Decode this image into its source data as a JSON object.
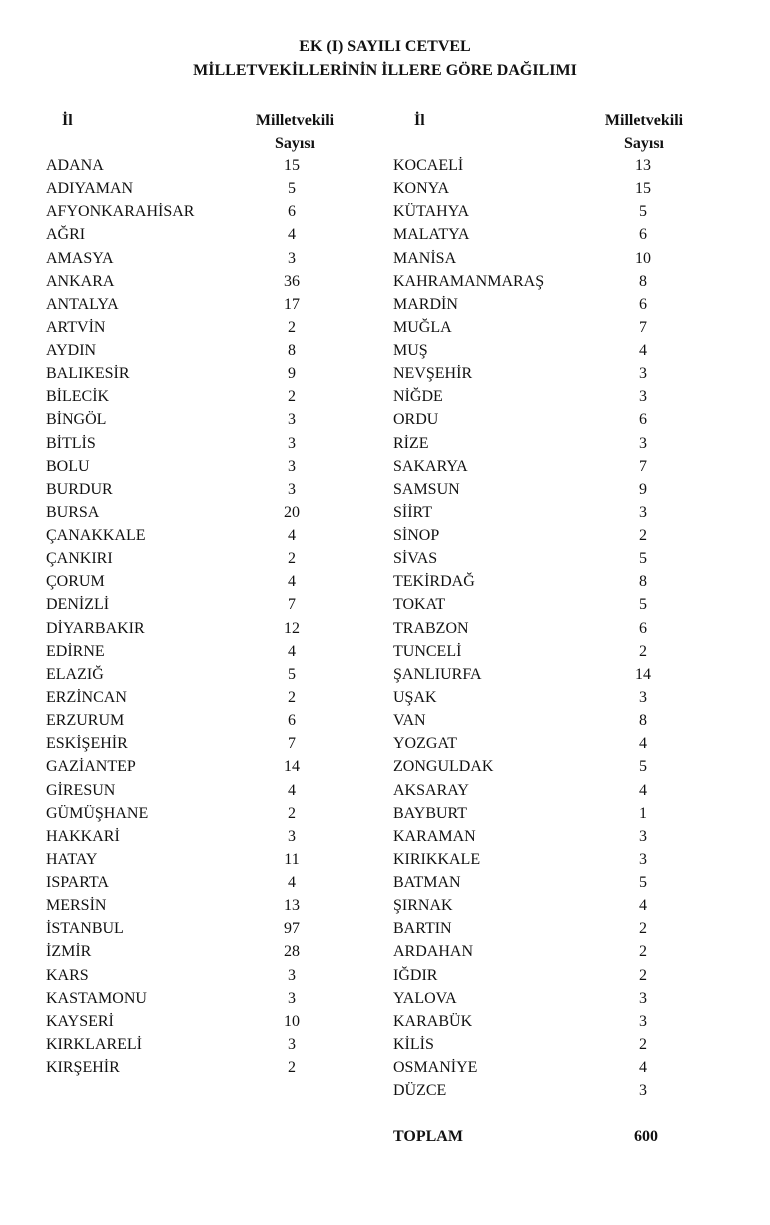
{
  "title_line1": "EK (I) SAYILI CETVEL",
  "title_line2": "MİLLETVEKİLLERİNİN İLLERE GÖRE DAĞILIMI",
  "header": {
    "il": "İl",
    "count_line1": "Milletvekili",
    "count_line2": "Sayısı"
  },
  "left_column": [
    {
      "il": "ADANA",
      "count": "15"
    },
    {
      "il": "ADIYAMAN",
      "count": "5"
    },
    {
      "il": "AFYONKARAHİSAR",
      "count": "6"
    },
    {
      "il": "AĞRI",
      "count": "4"
    },
    {
      "il": "AMASYA",
      "count": "3"
    },
    {
      "il": "ANKARA",
      "count": "36"
    },
    {
      "il": "ANTALYA",
      "count": "17"
    },
    {
      "il": "ARTVİN",
      "count": "2"
    },
    {
      "il": "AYDIN",
      "count": "8"
    },
    {
      "il": "BALIKESİR",
      "count": "9"
    },
    {
      "il": "BİLECİK",
      "count": "2"
    },
    {
      "il": "BİNGÖL",
      "count": "3"
    },
    {
      "il": "BİTLİS",
      "count": "3"
    },
    {
      "il": "BOLU",
      "count": "3"
    },
    {
      "il": "BURDUR",
      "count": "3"
    },
    {
      "il": "BURSA",
      "count": "20"
    },
    {
      "il": "ÇANAKKALE",
      "count": "4"
    },
    {
      "il": "ÇANKIRI",
      "count": "2"
    },
    {
      "il": "ÇORUM",
      "count": "4"
    },
    {
      "il": "DENİZLİ",
      "count": "7"
    },
    {
      "il": "DİYARBAKIR",
      "count": "12"
    },
    {
      "il": "EDİRNE",
      "count": "4"
    },
    {
      "il": "ELAZIĞ",
      "count": "5"
    },
    {
      "il": "ERZİNCAN",
      "count": "2"
    },
    {
      "il": "ERZURUM",
      "count": "6"
    },
    {
      "il": "ESKİŞEHİR",
      "count": "7"
    },
    {
      "il": "GAZİANTEP",
      "count": "14"
    },
    {
      "il": "GİRESUN",
      "count": "4"
    },
    {
      "il": "GÜMÜŞHANE",
      "count": "2"
    },
    {
      "il": "HAKKARİ",
      "count": "3"
    },
    {
      "il": "HATAY",
      "count": "11"
    },
    {
      "il": "ISPARTA",
      "count": "4"
    },
    {
      "il": "MERSİN",
      "count": "13"
    },
    {
      "il": "İSTANBUL",
      "count": "97"
    },
    {
      "il": "İZMİR",
      "count": "28"
    },
    {
      "il": "KARS",
      "count": "3"
    },
    {
      "il": "KASTAMONU",
      "count": "3"
    },
    {
      "il": "KAYSERİ",
      "count": "10"
    },
    {
      "il": "KIRKLARELİ",
      "count": "3"
    },
    {
      "il": "KIRŞEHİR",
      "count": "2"
    }
  ],
  "right_column": [
    {
      "il": "KOCAELİ",
      "count": "13"
    },
    {
      "il": "KONYA",
      "count": "15"
    },
    {
      "il": "KÜTAHYA",
      "count": "5"
    },
    {
      "il": "MALATYA",
      "count": "6"
    },
    {
      "il": "MANİSA",
      "count": "10"
    },
    {
      "il": "KAHRAMANMARAŞ",
      "count": "8"
    },
    {
      "il": "MARDİN",
      "count": "6"
    },
    {
      "il": "MUĞLA",
      "count": "7"
    },
    {
      "il": "MUŞ",
      "count": "4"
    },
    {
      "il": "NEVŞEHİR",
      "count": "3"
    },
    {
      "il": "NİĞDE",
      "count": "3"
    },
    {
      "il": "ORDU",
      "count": "6"
    },
    {
      "il": "RİZE",
      "count": "3"
    },
    {
      "il": "SAKARYA",
      "count": "7"
    },
    {
      "il": "SAMSUN",
      "count": "9"
    },
    {
      "il": "SİİRT",
      "count": "3"
    },
    {
      "il": "SİNOP",
      "count": "2"
    },
    {
      "il": "SİVAS",
      "count": "5"
    },
    {
      "il": "TEKİRDAĞ",
      "count": "8"
    },
    {
      "il": "TOKAT",
      "count": "5"
    },
    {
      "il": "TRABZON",
      "count": "6"
    },
    {
      "il": "TUNCELİ",
      "count": "2"
    },
    {
      "il": "ŞANLIURFA",
      "count": "14"
    },
    {
      "il": "UŞAK",
      "count": "3"
    },
    {
      "il": "VAN",
      "count": "8"
    },
    {
      "il": "YOZGAT",
      "count": "4"
    },
    {
      "il": "ZONGULDAK",
      "count": "5"
    },
    {
      "il": "AKSARAY",
      "count": "4"
    },
    {
      "il": "BAYBURT",
      "count": "1"
    },
    {
      "il": "KARAMAN",
      "count": "3"
    },
    {
      "il": "KIRIKKALE",
      "count": "3"
    },
    {
      "il": "BATMAN",
      "count": "5"
    },
    {
      "il": "ŞIRNAK",
      "count": "4"
    },
    {
      "il": "BARTIN",
      "count": "2"
    },
    {
      "il": "ARDAHAN",
      "count": "2"
    },
    {
      "il": "IĞDIR",
      "count": "2"
    },
    {
      "il": "YALOVA",
      "count": "3"
    },
    {
      "il": "KARABÜK",
      "count": "3"
    },
    {
      "il": "KİLİS",
      "count": "2"
    },
    {
      "il": "OSMANİYE",
      "count": "4"
    },
    {
      "il": "DÜZCE",
      "count": "3"
    }
  ],
  "total": {
    "label": "TOPLAM",
    "value": "600"
  }
}
